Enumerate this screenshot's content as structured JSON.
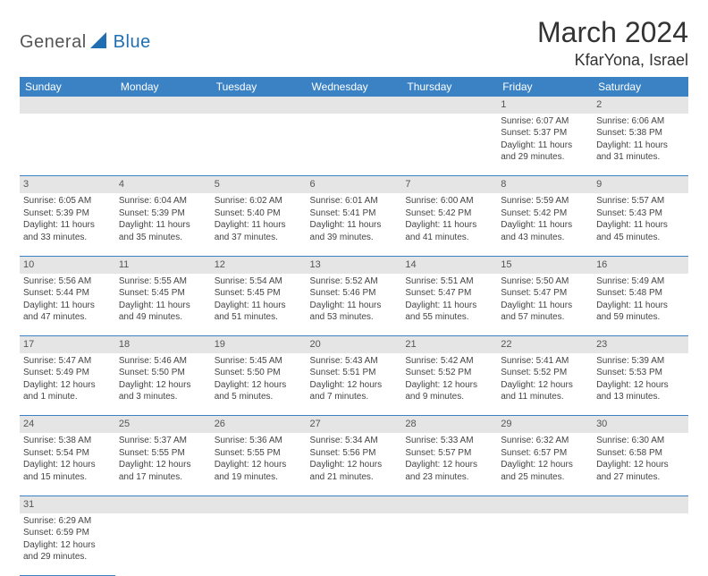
{
  "logo": {
    "part1": "General",
    "part2": "Blue"
  },
  "title": "March 2024",
  "location": "KfarYona, Israel",
  "colors": {
    "header_bg": "#3b82c4",
    "header_text": "#ffffff",
    "daynum_bg": "#e5e5e5",
    "border": "#3b82c4",
    "logo_gray": "#555555",
    "logo_blue": "#1f6fb2"
  },
  "weekdays": [
    "Sunday",
    "Monday",
    "Tuesday",
    "Wednesday",
    "Thursday",
    "Friday",
    "Saturday"
  ],
  "weeks": [
    {
      "nums": [
        "",
        "",
        "",
        "",
        "",
        "1",
        "2"
      ],
      "cells": [
        null,
        null,
        null,
        null,
        null,
        {
          "sunrise": "Sunrise: 6:07 AM",
          "sunset": "Sunset: 5:37 PM",
          "day1": "Daylight: 11 hours",
          "day2": "and 29 minutes."
        },
        {
          "sunrise": "Sunrise: 6:06 AM",
          "sunset": "Sunset: 5:38 PM",
          "day1": "Daylight: 11 hours",
          "day2": "and 31 minutes."
        }
      ]
    },
    {
      "nums": [
        "3",
        "4",
        "5",
        "6",
        "7",
        "8",
        "9"
      ],
      "cells": [
        {
          "sunrise": "Sunrise: 6:05 AM",
          "sunset": "Sunset: 5:39 PM",
          "day1": "Daylight: 11 hours",
          "day2": "and 33 minutes."
        },
        {
          "sunrise": "Sunrise: 6:04 AM",
          "sunset": "Sunset: 5:39 PM",
          "day1": "Daylight: 11 hours",
          "day2": "and 35 minutes."
        },
        {
          "sunrise": "Sunrise: 6:02 AM",
          "sunset": "Sunset: 5:40 PM",
          "day1": "Daylight: 11 hours",
          "day2": "and 37 minutes."
        },
        {
          "sunrise": "Sunrise: 6:01 AM",
          "sunset": "Sunset: 5:41 PM",
          "day1": "Daylight: 11 hours",
          "day2": "and 39 minutes."
        },
        {
          "sunrise": "Sunrise: 6:00 AM",
          "sunset": "Sunset: 5:42 PM",
          "day1": "Daylight: 11 hours",
          "day2": "and 41 minutes."
        },
        {
          "sunrise": "Sunrise: 5:59 AM",
          "sunset": "Sunset: 5:42 PM",
          "day1": "Daylight: 11 hours",
          "day2": "and 43 minutes."
        },
        {
          "sunrise": "Sunrise: 5:57 AM",
          "sunset": "Sunset: 5:43 PM",
          "day1": "Daylight: 11 hours",
          "day2": "and 45 minutes."
        }
      ]
    },
    {
      "nums": [
        "10",
        "11",
        "12",
        "13",
        "14",
        "15",
        "16"
      ],
      "cells": [
        {
          "sunrise": "Sunrise: 5:56 AM",
          "sunset": "Sunset: 5:44 PM",
          "day1": "Daylight: 11 hours",
          "day2": "and 47 minutes."
        },
        {
          "sunrise": "Sunrise: 5:55 AM",
          "sunset": "Sunset: 5:45 PM",
          "day1": "Daylight: 11 hours",
          "day2": "and 49 minutes."
        },
        {
          "sunrise": "Sunrise: 5:54 AM",
          "sunset": "Sunset: 5:45 PM",
          "day1": "Daylight: 11 hours",
          "day2": "and 51 minutes."
        },
        {
          "sunrise": "Sunrise: 5:52 AM",
          "sunset": "Sunset: 5:46 PM",
          "day1": "Daylight: 11 hours",
          "day2": "and 53 minutes."
        },
        {
          "sunrise": "Sunrise: 5:51 AM",
          "sunset": "Sunset: 5:47 PM",
          "day1": "Daylight: 11 hours",
          "day2": "and 55 minutes."
        },
        {
          "sunrise": "Sunrise: 5:50 AM",
          "sunset": "Sunset: 5:47 PM",
          "day1": "Daylight: 11 hours",
          "day2": "and 57 minutes."
        },
        {
          "sunrise": "Sunrise: 5:49 AM",
          "sunset": "Sunset: 5:48 PM",
          "day1": "Daylight: 11 hours",
          "day2": "and 59 minutes."
        }
      ]
    },
    {
      "nums": [
        "17",
        "18",
        "19",
        "20",
        "21",
        "22",
        "23"
      ],
      "cells": [
        {
          "sunrise": "Sunrise: 5:47 AM",
          "sunset": "Sunset: 5:49 PM",
          "day1": "Daylight: 12 hours",
          "day2": "and 1 minute."
        },
        {
          "sunrise": "Sunrise: 5:46 AM",
          "sunset": "Sunset: 5:50 PM",
          "day1": "Daylight: 12 hours",
          "day2": "and 3 minutes."
        },
        {
          "sunrise": "Sunrise: 5:45 AM",
          "sunset": "Sunset: 5:50 PM",
          "day1": "Daylight: 12 hours",
          "day2": "and 5 minutes."
        },
        {
          "sunrise": "Sunrise: 5:43 AM",
          "sunset": "Sunset: 5:51 PM",
          "day1": "Daylight: 12 hours",
          "day2": "and 7 minutes."
        },
        {
          "sunrise": "Sunrise: 5:42 AM",
          "sunset": "Sunset: 5:52 PM",
          "day1": "Daylight: 12 hours",
          "day2": "and 9 minutes."
        },
        {
          "sunrise": "Sunrise: 5:41 AM",
          "sunset": "Sunset: 5:52 PM",
          "day1": "Daylight: 12 hours",
          "day2": "and 11 minutes."
        },
        {
          "sunrise": "Sunrise: 5:39 AM",
          "sunset": "Sunset: 5:53 PM",
          "day1": "Daylight: 12 hours",
          "day2": "and 13 minutes."
        }
      ]
    },
    {
      "nums": [
        "24",
        "25",
        "26",
        "27",
        "28",
        "29",
        "30"
      ],
      "cells": [
        {
          "sunrise": "Sunrise: 5:38 AM",
          "sunset": "Sunset: 5:54 PM",
          "day1": "Daylight: 12 hours",
          "day2": "and 15 minutes."
        },
        {
          "sunrise": "Sunrise: 5:37 AM",
          "sunset": "Sunset: 5:55 PM",
          "day1": "Daylight: 12 hours",
          "day2": "and 17 minutes."
        },
        {
          "sunrise": "Sunrise: 5:36 AM",
          "sunset": "Sunset: 5:55 PM",
          "day1": "Daylight: 12 hours",
          "day2": "and 19 minutes."
        },
        {
          "sunrise": "Sunrise: 5:34 AM",
          "sunset": "Sunset: 5:56 PM",
          "day1": "Daylight: 12 hours",
          "day2": "and 21 minutes."
        },
        {
          "sunrise": "Sunrise: 5:33 AM",
          "sunset": "Sunset: 5:57 PM",
          "day1": "Daylight: 12 hours",
          "day2": "and 23 minutes."
        },
        {
          "sunrise": "Sunrise: 6:32 AM",
          "sunset": "Sunset: 6:57 PM",
          "day1": "Daylight: 12 hours",
          "day2": "and 25 minutes."
        },
        {
          "sunrise": "Sunrise: 6:30 AM",
          "sunset": "Sunset: 6:58 PM",
          "day1": "Daylight: 12 hours",
          "day2": "and 27 minutes."
        }
      ]
    },
    {
      "nums": [
        "31",
        "",
        "",
        "",
        "",
        "",
        ""
      ],
      "cells": [
        {
          "sunrise": "Sunrise: 6:29 AM",
          "sunset": "Sunset: 6:59 PM",
          "day1": "Daylight: 12 hours",
          "day2": "and 29 minutes."
        },
        null,
        null,
        null,
        null,
        null,
        null
      ]
    }
  ]
}
